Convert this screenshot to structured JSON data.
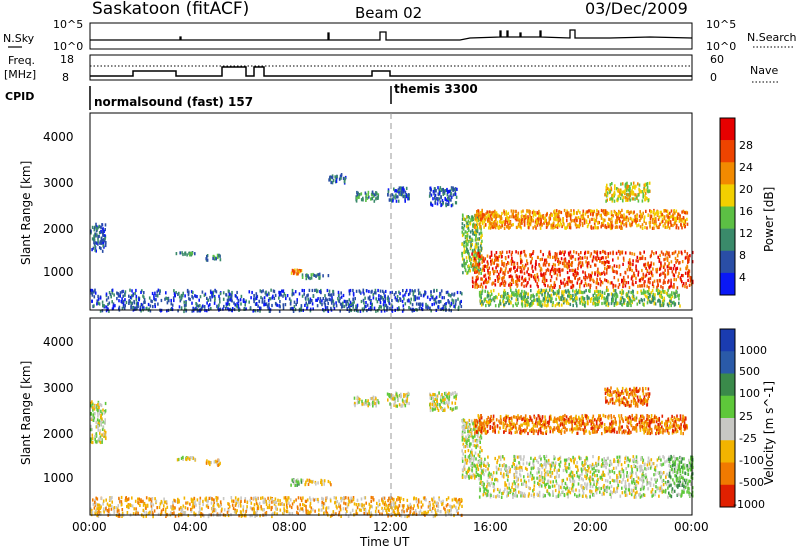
{
  "header": {
    "title": "Saskatoon (fitACF)",
    "beam": "Beam 02",
    "date": "03/Dec/2009"
  },
  "strip_labels": {
    "nsky": "N.Sky",
    "nsearch": "N.Search",
    "freq_line1": "Freq.",
    "freq_line2": "[MHz]",
    "nave": "Nave",
    "cpid": "CPID",
    "nsky_top_tick": "10^5",
    "nsky_bottom_tick": "10^0",
    "freq_top_tick": "18",
    "freq_bottom_tick": "8",
    "nave_top_tick": "60",
    "nave_bottom_tick": "0",
    "mode1": "normalsound (fast) 157",
    "mode2": "themis 3300"
  },
  "power_panel": {
    "ylabel": "Slant Range [km]",
    "yticks": [
      "1000",
      "2000",
      "3000",
      "4000"
    ],
    "colorbar_label": "Power [dB]",
    "colorbar_ticks": [
      "4",
      "8",
      "12",
      "16",
      "20",
      "24",
      "28"
    ],
    "colors": [
      "#0a18f5",
      "#2a4ea6",
      "#3a8a6a",
      "#5cc044",
      "#f2d000",
      "#f28a00",
      "#ee4400",
      "#e60000"
    ]
  },
  "velocity_panel": {
    "ylabel": "Slant Range [km]",
    "yticks": [
      "1000",
      "2000",
      "3000",
      "4000"
    ],
    "colorbar_label": "Velocity [m s^-1]",
    "colorbar_ticks": [
      "1000",
      "500",
      "100",
      "25",
      "-25",
      "-100",
      "-500",
      "-1000"
    ],
    "colors": [
      "#1a3cb0",
      "#2a5aa8",
      "#3a8a4a",
      "#5ec83a",
      "#c8c8c4",
      "#f2b400",
      "#f07a00",
      "#e02000"
    ]
  },
  "xaxis": {
    "ticks": [
      "00:00",
      "04:00",
      "08:00",
      "12:00",
      "16:00",
      "20:00",
      "00:00"
    ],
    "label": "Time UT"
  },
  "chart_data": {
    "type": "heatmap",
    "title": "Saskatoon (fitACF)",
    "xlabel": "Time UT",
    "ylabel": "Slant Range [km]",
    "xlim_hours": [
      0,
      24
    ],
    "ylim_km": [
      180,
      4500
    ],
    "mode_change_hour": 12,
    "power_regions": [
      {
        "t0": 0.0,
        "t1": 0.6,
        "r0": 1500,
        "r1": 2100,
        "level": 1
      },
      {
        "t0": 0.0,
        "t1": 14.8,
        "r0": 180,
        "r1": 650,
        "level": 1
      },
      {
        "t0": 3.4,
        "t1": 4.2,
        "r0": 1420,
        "r1": 1480,
        "level": 2
      },
      {
        "t0": 4.6,
        "t1": 5.2,
        "r0": 1300,
        "r1": 1420,
        "level": 2
      },
      {
        "t0": 8.0,
        "t1": 8.4,
        "r0": 1000,
        "r1": 1100,
        "level": 5
      },
      {
        "t0": 8.4,
        "t1": 9.6,
        "r0": 900,
        "r1": 1000,
        "level": 2
      },
      {
        "t0": 9.5,
        "t1": 10.2,
        "r0": 3000,
        "r1": 3200,
        "level": 1
      },
      {
        "t0": 10.5,
        "t1": 11.5,
        "r0": 2600,
        "r1": 2800,
        "level": 2
      },
      {
        "t0": 11.8,
        "t1": 12.7,
        "r0": 2600,
        "r1": 2900,
        "level": 1
      },
      {
        "t0": 13.5,
        "t1": 14.6,
        "r0": 2500,
        "r1": 2900,
        "level": 1
      },
      {
        "t0": 14.8,
        "t1": 15.6,
        "r0": 1000,
        "r1": 2300,
        "level": 3
      },
      {
        "t0": 15.3,
        "t1": 23.8,
        "r0": 2000,
        "r1": 2400,
        "level": 5
      },
      {
        "t0": 15.2,
        "t1": 24.0,
        "r0": 700,
        "r1": 1500,
        "level": 6
      },
      {
        "t0": 15.5,
        "t1": 23.5,
        "r0": 300,
        "r1": 650,
        "level": 3
      },
      {
        "t0": 20.5,
        "t1": 22.3,
        "r0": 2600,
        "r1": 3000,
        "level": 4
      }
    ],
    "velocity_regions": [
      {
        "t0": 0.0,
        "t1": 0.6,
        "r0": 1800,
        "r1": 2700,
        "level": 4
      },
      {
        "t0": 0.0,
        "t1": 14.8,
        "r0": 180,
        "r1": 600,
        "level": 5
      },
      {
        "t0": 3.4,
        "t1": 4.2,
        "r0": 1420,
        "r1": 1480,
        "level": 4
      },
      {
        "t0": 4.6,
        "t1": 5.2,
        "r0": 1300,
        "r1": 1420,
        "level": 5
      },
      {
        "t0": 7.9,
        "t1": 8.4,
        "r0": 860,
        "r1": 1000,
        "level": 3
      },
      {
        "t0": 8.4,
        "t1": 9.6,
        "r0": 880,
        "r1": 980,
        "level": 5
      },
      {
        "t0": 10.5,
        "t1": 11.5,
        "r0": 2600,
        "r1": 2800,
        "level": 4
      },
      {
        "t0": 11.8,
        "t1": 12.7,
        "r0": 2600,
        "r1": 2900,
        "level": 4
      },
      {
        "t0": 13.5,
        "t1": 14.6,
        "r0": 2500,
        "r1": 2900,
        "level": 4
      },
      {
        "t0": 14.8,
        "t1": 15.6,
        "r0": 1000,
        "r1": 2300,
        "level": 4
      },
      {
        "t0": 15.3,
        "t1": 23.8,
        "r0": 2000,
        "r1": 2400,
        "level": 6
      },
      {
        "t0": 15.5,
        "t1": 23.0,
        "r0": 600,
        "r1": 1500,
        "level": 4
      },
      {
        "t0": 20.5,
        "t1": 22.3,
        "r0": 2600,
        "r1": 3000,
        "level": 6
      },
      {
        "t0": 23.0,
        "t1": 24.0,
        "r0": 600,
        "r1": 1500,
        "level": 3
      }
    ]
  }
}
